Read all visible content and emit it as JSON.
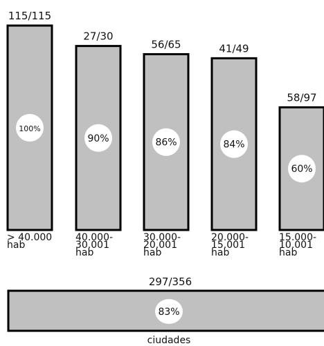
{
  "chart_data": {
    "type": "bar",
    "bars": [
      {
        "category": [
          "> 40.000",
          "hab"
        ],
        "count": "115/115",
        "percent_label": "100%",
        "value": 100
      },
      {
        "category": [
          "40.000-",
          "30.001",
          "hab"
        ],
        "count": "27/30",
        "percent_label": "90%",
        "value": 90
      },
      {
        "category": [
          "30.000-",
          "20.001",
          "hab"
        ],
        "count": "56/65",
        "percent_label": "86%",
        "value": 86
      },
      {
        "category": [
          "20.000-",
          "15.001",
          "hab"
        ],
        "count": "41/49",
        "percent_label": "84%",
        "value": 84
      },
      {
        "category": [
          "15.000-",
          "10.001",
          "hab"
        ],
        "count": "58/97",
        "percent_label": "60%",
        "value": 60
      }
    ],
    "total": {
      "count": "297/356",
      "percent_label": "83%",
      "value": 83,
      "label": "ciudades"
    },
    "ylim": [
      0,
      100
    ],
    "colors": {
      "bar_fill": "#c0c0c0",
      "bar_stroke": "#000000",
      "circle_fill": "#ffffff",
      "text": "#111111"
    }
  }
}
